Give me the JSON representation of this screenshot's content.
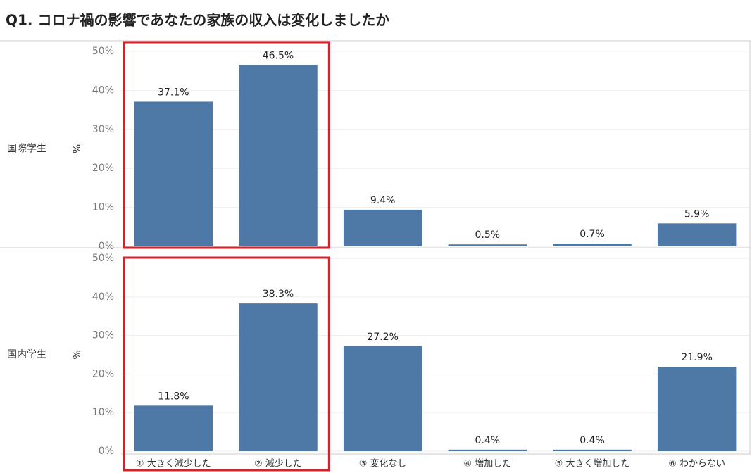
{
  "chart_data": {
    "type": "bar",
    "title": "Q1. コロナ禍の影響であなたの家族の収入は変化しましたか",
    "categories": [
      "① 大きく減少した",
      "② 減少した",
      "③ 変化なし",
      "④ 増加した",
      "⑤ 大きく増加した",
      "⑥ わからない"
    ],
    "ylabel": "%",
    "ylim": [
      0,
      50
    ],
    "yticks": [
      {
        "value": 0,
        "label": "0%"
      },
      {
        "value": 10,
        "label": "10%"
      },
      {
        "value": 20,
        "label": "20%"
      },
      {
        "value": 30,
        "label": "30%"
      },
      {
        "value": 40,
        "label": "40%"
      },
      {
        "value": 50,
        "label": "50%"
      }
    ],
    "grid": true,
    "color": "#4e79a7",
    "series": [
      {
        "name": "国際学生",
        "values": [
          37.1,
          46.5,
          9.4,
          0.5,
          0.7,
          5.9
        ],
        "value_labels": [
          "37.1%",
          "46.5%",
          "9.4%",
          "0.5%",
          "0.7%",
          "5.9%"
        ]
      },
      {
        "name": "国内学生",
        "values": [
          11.8,
          38.3,
          27.2,
          0.4,
          0.4,
          21.9
        ],
        "value_labels": [
          "11.8%",
          "38.3%",
          "27.2%",
          "0.4%",
          "0.4%",
          "21.9%"
        ]
      }
    ]
  }
}
